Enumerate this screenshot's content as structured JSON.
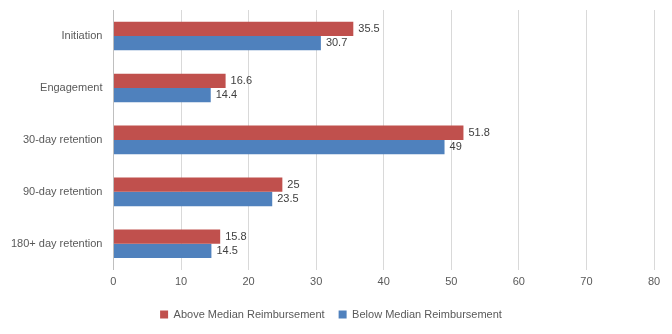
{
  "chart_data": {
    "type": "bar",
    "orientation": "horizontal",
    "categories": [
      "Initiation",
      "Engagement",
      "30-day retention",
      "90-day retention",
      "180+ day retention"
    ],
    "series": [
      {
        "name": "Above Median Reimbursement",
        "color": "#c0504d",
        "values": [
          35.5,
          16.6,
          51.8,
          25,
          15.8
        ]
      },
      {
        "name": "Below Median Reimbursement",
        "color": "#4f81bd",
        "values": [
          30.7,
          14.4,
          49,
          23.5,
          14.5
        ]
      }
    ],
    "xlim": [
      0,
      80
    ],
    "xticks": [
      0,
      10,
      20,
      30,
      40,
      50,
      60,
      70,
      80
    ],
    "grid": true,
    "legend": "bottom",
    "data_labels": true
  }
}
